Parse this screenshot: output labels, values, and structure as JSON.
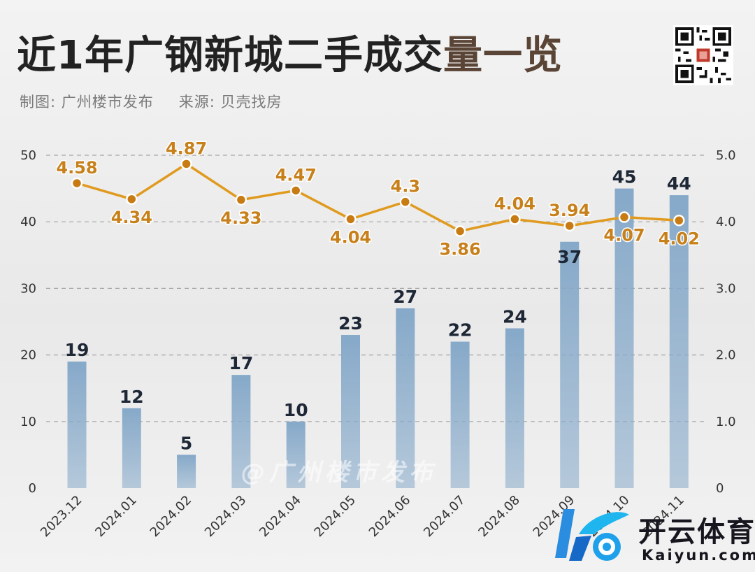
{
  "header": {
    "title_main": "近1年广钢新城二手成交",
    "title_accent": "量一览",
    "credit_label": "制图: 广州楼市发布",
    "source_label": "来源: 贝壳找房"
  },
  "watermark": {
    "text": "@广州楼市发布"
  },
  "logo": {
    "name_cn": "开云体育",
    "name_en": "Kaiyun.com"
  },
  "colors": {
    "bar": "#86a9c9",
    "line": "#e09a1e",
    "marker": "#c77b12",
    "line_label": "#c7801a",
    "bar_label": "#1e2735"
  },
  "chart_data": {
    "type": "bar",
    "categories": [
      "2023.12",
      "2024.01",
      "2024.02",
      "2024.03",
      "2024.04",
      "2024.05",
      "2024.06",
      "2024.07",
      "2024.08",
      "2024.09",
      "2024.10",
      "2024.11"
    ],
    "series": [
      {
        "type": "bar",
        "axis": "left",
        "values": [
          19,
          12,
          5,
          17,
          10,
          23,
          27,
          22,
          24,
          37,
          45,
          44
        ]
      },
      {
        "type": "line",
        "axis": "right",
        "values": [
          4.58,
          4.34,
          4.87,
          4.33,
          4.47,
          4.04,
          4.3,
          3.86,
          4.04,
          3.94,
          4.07,
          4.02
        ]
      }
    ],
    "left_axis": {
      "ylim": [
        0,
        50
      ],
      "ticks": [
        "0",
        "10",
        "20",
        "30",
        "40",
        "50"
      ]
    },
    "right_axis": {
      "ylim": [
        0,
        5
      ],
      "ticks": [
        "0",
        "1.0",
        "2.0",
        "3.0",
        "4.0",
        "5.0"
      ]
    },
    "grid": true
  }
}
